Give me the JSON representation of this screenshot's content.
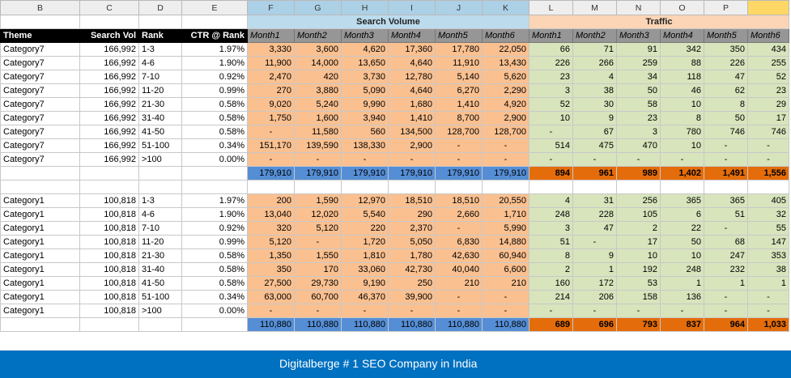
{
  "column_letters": [
    "B",
    "C",
    "D",
    "E",
    "F",
    "G",
    "H",
    "I",
    "J",
    "K",
    "L",
    "M",
    "N",
    "O",
    "P",
    ""
  ],
  "group_headers": {
    "search_volume": "Search Volume",
    "traffic": "Traffic"
  },
  "headers": {
    "theme": "Theme",
    "search_vol": "Search Vol",
    "rank": "Rank",
    "ctr": "CTR @ Rank",
    "sv_months": [
      "Month1",
      "Month2",
      "Month3",
      "Month4",
      "Month5",
      "Month6"
    ],
    "traffic_months": [
      "Month1",
      "Month2",
      "Month3",
      "Month4",
      "Month5",
      "Month6"
    ]
  },
  "block1": {
    "rows": [
      {
        "theme": "Category7",
        "sv": "166,992",
        "rank": "1-3",
        "ctr": "1.97%",
        "months": [
          "3,330",
          "3,600",
          "4,620",
          "17,360",
          "17,780",
          "22,050"
        ],
        "traffic": [
          "66",
          "71",
          "91",
          "342",
          "350",
          "434"
        ]
      },
      {
        "theme": "Category7",
        "sv": "166,992",
        "rank": "4-6",
        "ctr": "1.90%",
        "months": [
          "11,900",
          "14,000",
          "13,650",
          "4,640",
          "11,910",
          "13,430"
        ],
        "traffic": [
          "226",
          "266",
          "259",
          "88",
          "226",
          "255"
        ]
      },
      {
        "theme": "Category7",
        "sv": "166,992",
        "rank": "7-10",
        "ctr": "0.92%",
        "months": [
          "2,470",
          "420",
          "3,730",
          "12,780",
          "5,140",
          "5,620"
        ],
        "traffic": [
          "23",
          "4",
          "34",
          "118",
          "47",
          "52"
        ]
      },
      {
        "theme": "Category7",
        "sv": "166,992",
        "rank": "11-20",
        "ctr": "0.99%",
        "months": [
          "270",
          "3,880",
          "5,090",
          "4,640",
          "6,270",
          "2,290"
        ],
        "traffic": [
          "3",
          "38",
          "50",
          "46",
          "62",
          "23"
        ]
      },
      {
        "theme": "Category7",
        "sv": "166,992",
        "rank": "21-30",
        "ctr": "0.58%",
        "months": [
          "9,020",
          "5,240",
          "9,990",
          "1,680",
          "1,410",
          "4,920"
        ],
        "traffic": [
          "52",
          "30",
          "58",
          "10",
          "8",
          "29"
        ]
      },
      {
        "theme": "Category7",
        "sv": "166,992",
        "rank": "31-40",
        "ctr": "0.58%",
        "months": [
          "1,750",
          "1,600",
          "3,940",
          "1,410",
          "8,700",
          "2,900"
        ],
        "traffic": [
          "10",
          "9",
          "23",
          "8",
          "50",
          "17"
        ]
      },
      {
        "theme": "Category7",
        "sv": "166,992",
        "rank": "41-50",
        "ctr": "0.58%",
        "months": [
          "-",
          "11,580",
          "560",
          "134,500",
          "128,700",
          "128,700"
        ],
        "traffic": [
          "-",
          "67",
          "3",
          "780",
          "746",
          "746"
        ]
      },
      {
        "theme": "Category7",
        "sv": "166,992",
        "rank": "51-100",
        "ctr": "0.34%",
        "months": [
          "151,170",
          "139,590",
          "138,330",
          "2,900",
          "-",
          "-"
        ],
        "traffic": [
          "514",
          "475",
          "470",
          "10",
          "-",
          "-"
        ]
      },
      {
        "theme": "Category7",
        "sv": "166,992",
        "rank": ">100",
        "ctr": "0.00%",
        "months": [
          "-",
          "-",
          "-",
          "-",
          "-",
          "-"
        ],
        "traffic": [
          "-",
          "-",
          "-",
          "-",
          "-",
          "-"
        ]
      }
    ],
    "sv_totals": [
      "179,910",
      "179,910",
      "179,910",
      "179,910",
      "179,910",
      "179,910"
    ],
    "traffic_totals": [
      "894",
      "961",
      "989",
      "1,402",
      "1,491",
      "1,556"
    ]
  },
  "block2": {
    "rows": [
      {
        "theme": "Category1",
        "sv": "100,818",
        "rank": "1-3",
        "ctr": "1.97%",
        "months": [
          "200",
          "1,590",
          "12,970",
          "18,510",
          "18,510",
          "20,550"
        ],
        "traffic": [
          "4",
          "31",
          "256",
          "365",
          "365",
          "405"
        ]
      },
      {
        "theme": "Category1",
        "sv": "100,818",
        "rank": "4-6",
        "ctr": "1.90%",
        "months": [
          "13,040",
          "12,020",
          "5,540",
          "290",
          "2,660",
          "1,710"
        ],
        "traffic": [
          "248",
          "228",
          "105",
          "6",
          "51",
          "32"
        ]
      },
      {
        "theme": "Category1",
        "sv": "100,818",
        "rank": "7-10",
        "ctr": "0.92%",
        "months": [
          "320",
          "5,120",
          "220",
          "2,370",
          "-",
          "5,990"
        ],
        "traffic": [
          "3",
          "47",
          "2",
          "22",
          "-",
          "55"
        ]
      },
      {
        "theme": "Category1",
        "sv": "100,818",
        "rank": "11-20",
        "ctr": "0.99%",
        "months": [
          "5,120",
          "-",
          "1,720",
          "5,050",
          "6,830",
          "14,880"
        ],
        "traffic": [
          "51",
          "-",
          "17",
          "50",
          "68",
          "147"
        ]
      },
      {
        "theme": "Category1",
        "sv": "100,818",
        "rank": "21-30",
        "ctr": "0.58%",
        "months": [
          "1,350",
          "1,550",
          "1,810",
          "1,780",
          "42,630",
          "60,940"
        ],
        "traffic": [
          "8",
          "9",
          "10",
          "10",
          "247",
          "353"
        ]
      },
      {
        "theme": "Category1",
        "sv": "100,818",
        "rank": "31-40",
        "ctr": "0.58%",
        "months": [
          "350",
          "170",
          "33,060",
          "42,730",
          "40,040",
          "6,600"
        ],
        "traffic": [
          "2",
          "1",
          "192",
          "248",
          "232",
          "38"
        ]
      },
      {
        "theme": "Category1",
        "sv": "100,818",
        "rank": "41-50",
        "ctr": "0.58%",
        "months": [
          "27,500",
          "29,730",
          "9,190",
          "250",
          "210",
          "210"
        ],
        "traffic": [
          "160",
          "172",
          "53",
          "1",
          "1",
          "1"
        ]
      },
      {
        "theme": "Category1",
        "sv": "100,818",
        "rank": "51-100",
        "ctr": "0.34%",
        "months": [
          "63,000",
          "60,700",
          "46,370",
          "39,900",
          "-",
          "-"
        ],
        "traffic": [
          "214",
          "206",
          "158",
          "136",
          "-",
          "-"
        ]
      },
      {
        "theme": "Category1",
        "sv": "100,818",
        "rank": ">100",
        "ctr": "0.00%",
        "months": [
          "-",
          "-",
          "-",
          "-",
          "-",
          "-"
        ],
        "traffic": [
          "-",
          "-",
          "-",
          "-",
          "-",
          "-"
        ]
      }
    ],
    "sv_totals": [
      "110,880",
      "110,880",
      "110,880",
      "110,880",
      "110,880",
      "110,880"
    ],
    "traffic_totals": [
      "689",
      "696",
      "793",
      "837",
      "964",
      "1,033"
    ]
  },
  "footer": {
    "text": "Digitalberge # 1 SEO Company in India"
  },
  "colors": {
    "search_volume_fill": "#fac090",
    "traffic_fill": "#d8e4bc",
    "sv_total_fill": "#558ed5",
    "traffic_total_fill": "#e46c0a",
    "footer_bg": "#0070c0"
  }
}
